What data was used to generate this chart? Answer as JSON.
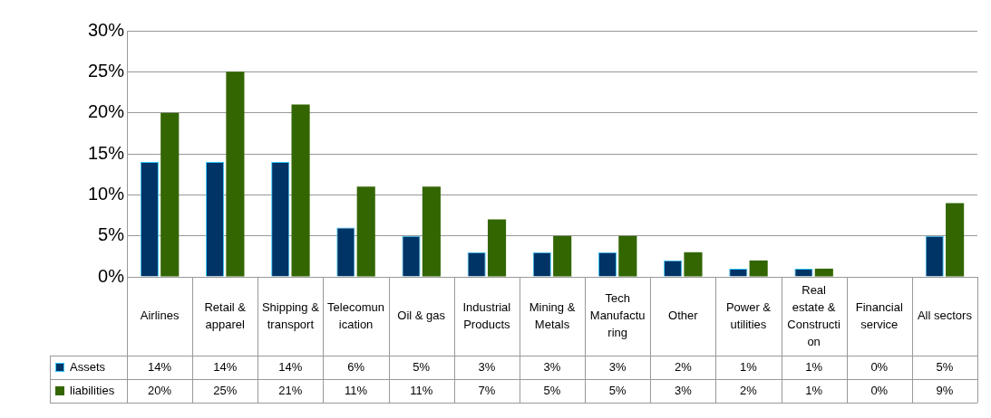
{
  "chart_data": {
    "type": "bar",
    "categories": [
      "Airlines",
      "Retail & apparel",
      "Shipping & transport",
      "Telecomunication",
      "Oil & gas",
      "Industrial Products",
      "Mining & Metals",
      "Tech Manufacturing",
      "Other",
      "Power & utilities",
      "Real estate & Construction",
      "Financial service",
      "All sectors"
    ],
    "series": [
      {
        "name": "Assets",
        "color": "#003366",
        "values": [
          14,
          14,
          14,
          6,
          5,
          3,
          3,
          3,
          2,
          1,
          1,
          0,
          5
        ],
        "value_labels": [
          "14%",
          "14%",
          "14%",
          "6%",
          "5%",
          "3%",
          "3%",
          "3%",
          "2%",
          "1%",
          "1%",
          "0%",
          "5%"
        ]
      },
      {
        "name": "liabilities",
        "color": "#336600",
        "values": [
          20,
          25,
          21,
          11,
          11,
          7,
          5,
          5,
          3,
          2,
          1,
          0,
          9
        ],
        "value_labels": [
          "20%",
          "25%",
          "21%",
          "11%",
          "11%",
          "7%",
          "5%",
          "5%",
          "3%",
          "2%",
          "1%",
          "0%",
          "9%"
        ]
      }
    ],
    "ylim": [
      0,
      30
    ],
    "yticks": [
      {
        "value": 0,
        "label": "0%"
      },
      {
        "value": 5,
        "label": "5%"
      },
      {
        "value": 10,
        "label": "10%"
      },
      {
        "value": 15,
        "label": "15%"
      },
      {
        "value": 20,
        "label": "20%"
      },
      {
        "value": 25,
        "label": "25%"
      },
      {
        "value": 30,
        "label": "30%"
      }
    ],
    "grid": "y",
    "legend": "bottom"
  }
}
